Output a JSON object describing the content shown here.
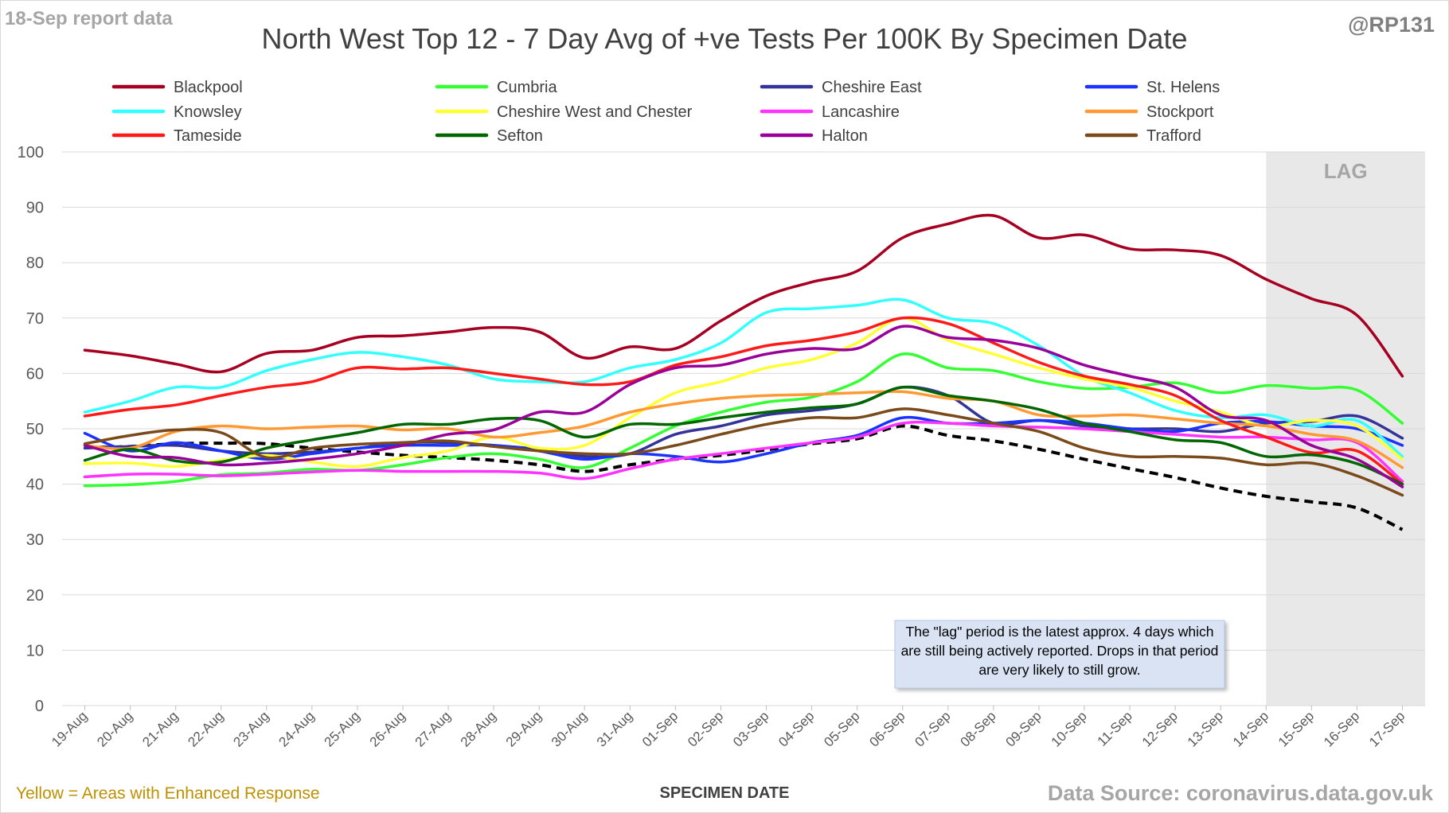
{
  "header": {
    "report_note": "18-Sep report data",
    "handle": "@RP131",
    "title": "North West Top 12 - 7 Day Avg of +ve Tests Per 100K By Specimen Date"
  },
  "footer": {
    "note": "Yellow = Areas with Enhanced Response",
    "source": "Data Source: coronavirus.data.gov.uk"
  },
  "chart_data": {
    "type": "line",
    "title": "North West Top 12 - 7 Day Avg of +ve Tests Per 100K By Specimen Date",
    "xlabel": "SPECIMEN DATE",
    "ylabel": "",
    "ylim": [
      0,
      100
    ],
    "yticks": [
      0,
      10,
      20,
      30,
      40,
      50,
      60,
      70,
      80,
      90,
      100
    ],
    "grid": true,
    "legend_position": "top",
    "categories": [
      "19-Aug",
      "20-Aug",
      "21-Aug",
      "22-Aug",
      "23-Aug",
      "24-Aug",
      "25-Aug",
      "26-Aug",
      "27-Aug",
      "28-Aug",
      "29-Aug",
      "30-Aug",
      "31-Aug",
      "01-Sep",
      "02-Sep",
      "03-Sep",
      "04-Sep",
      "05-Sep",
      "06-Sep",
      "07-Sep",
      "08-Sep",
      "09-Sep",
      "10-Sep",
      "11-Sep",
      "12-Sep",
      "13-Sep",
      "14-Sep",
      "15-Sep",
      "16-Sep",
      "17-Sep"
    ],
    "lag_region": {
      "label": "LAG",
      "from": "14-Sep",
      "to": "17-Sep",
      "color": "#e8e8e8"
    },
    "annotation": "The \"lag\" period is the latest approx. 4 days which are still being actively reported. Drops in that period are very likely to still grow.",
    "series": [
      {
        "name": "Blackpool",
        "color": "#a50021",
        "values": [
          64.2,
          63.2,
          61.7,
          60.3,
          63.6,
          64.2,
          66.5,
          66.8,
          67.5,
          68.3,
          67.5,
          62.8,
          64.8,
          64.5,
          69.5,
          74.0,
          76.5,
          78.5,
          84.5,
          87.0,
          88.5,
          84.5,
          85.0,
          82.5,
          82.3,
          81.3,
          77.0,
          73.5,
          70.5,
          59.5
        ]
      },
      {
        "name": "Cumbria",
        "color": "#33ff33",
        "values": [
          39.7,
          39.9,
          40.5,
          41.7,
          42.0,
          42.7,
          42.5,
          43.5,
          44.8,
          45.5,
          44.5,
          43.0,
          46.5,
          50.5,
          53.0,
          54.8,
          55.7,
          58.5,
          63.5,
          61.0,
          60.5,
          58.5,
          57.3,
          57.5,
          58.3,
          56.5,
          57.8,
          57.3,
          57.0,
          51.0
        ]
      },
      {
        "name": "Cheshire East",
        "color": "#333399",
        "values": [
          46.5,
          46.8,
          47.0,
          46.0,
          45.5,
          45.8,
          46.5,
          47.5,
          47.5,
          47.0,
          46.3,
          45.0,
          45.5,
          49.0,
          50.5,
          52.5,
          53.3,
          54.5,
          57.5,
          56.0,
          51.0,
          51.5,
          50.5,
          50.0,
          50.0,
          49.5,
          51.0,
          51.3,
          52.3,
          48.3
        ]
      },
      {
        "name": "St. Helens",
        "color": "#1a33ff",
        "values": [
          49.2,
          46.0,
          47.5,
          46.0,
          44.5,
          45.5,
          46.5,
          47.0,
          47.0,
          47.0,
          46.0,
          44.5,
          45.5,
          45.0,
          44.0,
          45.5,
          47.5,
          48.8,
          52.0,
          51.0,
          51.0,
          51.5,
          51.0,
          50.0,
          49.5,
          51.0,
          51.3,
          50.5,
          50.0,
          47.0
        ]
      },
      {
        "name": "Knowsley",
        "color": "#33ffff",
        "values": [
          53.0,
          55.0,
          57.5,
          57.5,
          60.5,
          62.5,
          63.8,
          63.0,
          61.5,
          59.0,
          58.5,
          58.5,
          61.0,
          62.5,
          65.5,
          71.0,
          71.7,
          72.3,
          73.3,
          70.0,
          69.0,
          65.0,
          59.5,
          56.5,
          53.3,
          52.0,
          52.5,
          50.5,
          51.5,
          45.0
        ]
      },
      {
        "name": "Cheshire West and Chester",
        "color": "#ffff33",
        "values": [
          43.7,
          43.8,
          43.2,
          44.3,
          45.2,
          44.0,
          43.2,
          44.8,
          46.0,
          48.5,
          46.5,
          47.0,
          52.0,
          56.5,
          58.5,
          61.0,
          62.5,
          65.5,
          70.0,
          66.0,
          63.5,
          61.0,
          59.0,
          57.5,
          55.0,
          53.0,
          50.5,
          51.5,
          50.5,
          44.5
        ]
      },
      {
        "name": "Lancashire",
        "color": "#ff33ff",
        "values": [
          41.3,
          41.8,
          41.8,
          41.5,
          41.8,
          42.2,
          42.5,
          42.3,
          42.3,
          42.3,
          42.0,
          41.0,
          42.8,
          44.5,
          45.5,
          46.5,
          47.5,
          48.5,
          51.0,
          51.0,
          50.5,
          50.3,
          50.0,
          49.5,
          49.0,
          48.5,
          48.5,
          48.0,
          47.5,
          40.5
        ]
      },
      {
        "name": "Stockport",
        "color": "#ff9933",
        "values": [
          47.0,
          46.5,
          49.5,
          50.5,
          50.0,
          50.3,
          50.5,
          49.8,
          50.0,
          48.5,
          49.3,
          50.5,
          53.0,
          54.5,
          55.5,
          56.0,
          56.2,
          56.5,
          56.7,
          55.5,
          55.0,
          52.5,
          52.3,
          52.5,
          51.8,
          51.0,
          50.5,
          49.0,
          47.8,
          43.0
        ]
      },
      {
        "name": "Tameside",
        "color": "#ff1a1a",
        "values": [
          52.3,
          53.5,
          54.3,
          56.0,
          57.5,
          58.5,
          61.0,
          60.8,
          61.0,
          60.0,
          59.0,
          58.0,
          58.5,
          61.5,
          63.0,
          65.0,
          66.0,
          67.5,
          70.0,
          69.0,
          65.5,
          62.0,
          59.5,
          58.0,
          56.0,
          51.5,
          48.5,
          45.7,
          46.0,
          40.0
        ]
      },
      {
        "name": "Sefton",
        "color": "#006600",
        "values": [
          44.3,
          46.3,
          44.2,
          44.0,
          46.5,
          48.0,
          49.3,
          50.8,
          50.8,
          51.8,
          51.5,
          48.5,
          50.8,
          50.8,
          52.0,
          53.0,
          53.8,
          54.5,
          57.5,
          56.0,
          55.0,
          53.5,
          51.0,
          49.5,
          48.0,
          47.5,
          45.0,
          45.3,
          43.7,
          40.0
        ]
      },
      {
        "name": "Halton",
        "color": "#990099",
        "values": [
          47.0,
          45.0,
          44.8,
          43.5,
          43.8,
          44.5,
          45.5,
          47.0,
          49.0,
          49.8,
          53.0,
          53.0,
          58.0,
          61.0,
          61.5,
          63.5,
          64.5,
          64.5,
          68.5,
          66.5,
          66.0,
          64.5,
          61.5,
          59.5,
          57.5,
          52.5,
          51.5,
          47.0,
          44.5,
          39.5
        ]
      },
      {
        "name": "Trafford",
        "color": "#7a4a1a",
        "values": [
          47.3,
          48.8,
          49.8,
          49.3,
          44.8,
          46.5,
          47.2,
          47.5,
          47.8,
          46.8,
          46.0,
          45.5,
          45.5,
          47.0,
          49.0,
          50.8,
          52.0,
          52.0,
          53.6,
          52.5,
          51.0,
          49.5,
          46.5,
          45.0,
          45.0,
          44.7,
          43.5,
          43.8,
          41.5,
          38.0
        ]
      },
      {
        "name": "",
        "color": "#000000",
        "dashed": true,
        "values": [
          46.6,
          46.8,
          47.3,
          47.4,
          47.3,
          46.5,
          45.8,
          45.2,
          44.8,
          44.3,
          43.5,
          42.3,
          43.5,
          44.5,
          45.2,
          46.2,
          47.3,
          48.2,
          50.5,
          48.8,
          47.8,
          46.3,
          44.5,
          42.8,
          41.2,
          39.3,
          37.8,
          36.8,
          35.7,
          31.8
        ]
      }
    ]
  }
}
